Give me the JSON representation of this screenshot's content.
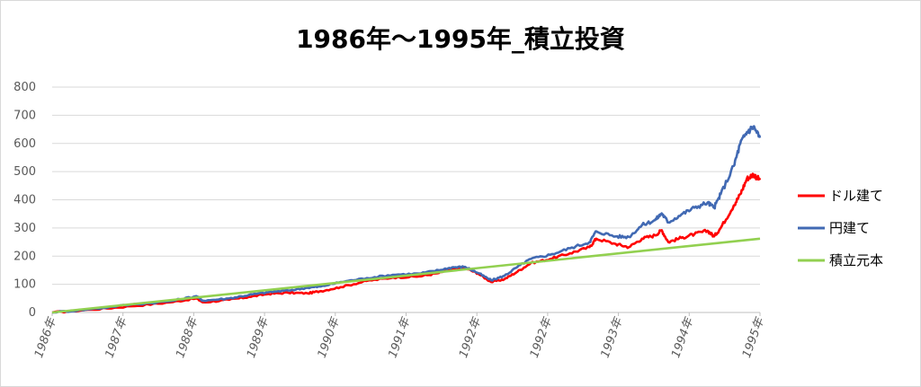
{
  "chart_data": {
    "type": "line",
    "title": "1986年～1995年_積立投資",
    "ylim": [
      0,
      800
    ],
    "yticks": [
      0,
      100,
      200,
      300,
      400,
      500,
      600,
      700,
      800
    ],
    "xlim": [
      0,
      108
    ],
    "x_tick_labels": [
      "1986年",
      "1987年",
      "1988年",
      "1989年",
      "1990年",
      "1991年",
      "1992年",
      "1992年",
      "1993年",
      "1994年",
      "1995年"
    ],
    "grid": true,
    "legend_position": "right",
    "series": [
      {
        "name": "ドル建て",
        "color": "#ff0000",
        "points": [
          [
            0,
            0
          ],
          [
            6,
            10
          ],
          [
            12,
            22
          ],
          [
            18,
            36
          ],
          [
            22,
            50
          ],
          [
            23,
            36
          ],
          [
            27,
            45
          ],
          [
            30,
            55
          ],
          [
            33,
            66
          ],
          [
            36,
            70
          ],
          [
            39,
            68
          ],
          [
            41,
            76
          ],
          [
            44,
            90
          ],
          [
            48,
            112
          ],
          [
            52,
            124
          ],
          [
            56,
            128
          ],
          [
            59,
            140
          ],
          [
            61,
            155
          ],
          [
            63,
            158
          ],
          [
            65,
            138
          ],
          [
            67,
            108
          ],
          [
            69,
            118
          ],
          [
            71,
            145
          ],
          [
            73,
            175
          ],
          [
            76,
            190
          ],
          [
            79,
            210
          ],
          [
            82,
            232
          ],
          [
            83,
            262
          ],
          [
            86,
            243
          ],
          [
            88,
            232
          ],
          [
            90,
            262
          ],
          [
            92,
            274
          ],
          [
            93,
            292
          ],
          [
            94,
            250
          ],
          [
            96,
            265
          ],
          [
            98,
            278
          ],
          [
            100,
            290
          ],
          [
            101,
            270
          ],
          [
            102,
            300
          ],
          [
            104,
            380
          ],
          [
            105,
            420
          ],
          [
            106,
            475
          ],
          [
            107,
            490
          ],
          [
            108,
            470
          ]
        ]
      },
      {
        "name": "円建て",
        "color": "#4169b3",
        "points": [
          [
            0,
            0
          ],
          [
            6,
            12
          ],
          [
            12,
            28
          ],
          [
            18,
            40
          ],
          [
            22,
            58
          ],
          [
            23,
            42
          ],
          [
            27,
            50
          ],
          [
            30,
            62
          ],
          [
            33,
            72
          ],
          [
            36,
            78
          ],
          [
            39,
            88
          ],
          [
            41,
            92
          ],
          [
            44,
            108
          ],
          [
            48,
            122
          ],
          [
            52,
            134
          ],
          [
            56,
            138
          ],
          [
            59,
            150
          ],
          [
            61,
            160
          ],
          [
            63,
            162
          ],
          [
            65,
            140
          ],
          [
            67,
            114
          ],
          [
            69,
            130
          ],
          [
            71,
            162
          ],
          [
            73,
            190
          ],
          [
            76,
            205
          ],
          [
            79,
            228
          ],
          [
            82,
            250
          ],
          [
            83,
            288
          ],
          [
            86,
            270
          ],
          [
            88,
            268
          ],
          [
            90,
            310
          ],
          [
            92,
            328
          ],
          [
            93,
            352
          ],
          [
            94,
            320
          ],
          [
            96,
            348
          ],
          [
            98,
            372
          ],
          [
            100,
            390
          ],
          [
            101,
            372
          ],
          [
            102,
            420
          ],
          [
            104,
            520
          ],
          [
            105,
            600
          ],
          [
            106,
            640
          ],
          [
            107,
            660
          ],
          [
            108,
            620
          ]
        ]
      },
      {
        "name": "積立元本",
        "color": "#92d050",
        "points": [
          [
            0,
            0
          ],
          [
            108,
            262
          ]
        ]
      }
    ]
  },
  "legend": {
    "items": [
      {
        "label": "ドル建て",
        "color": "#ff0000"
      },
      {
        "label": "円建て",
        "color": "#4169b3"
      },
      {
        "label": "積立元本",
        "color": "#92d050"
      }
    ]
  }
}
